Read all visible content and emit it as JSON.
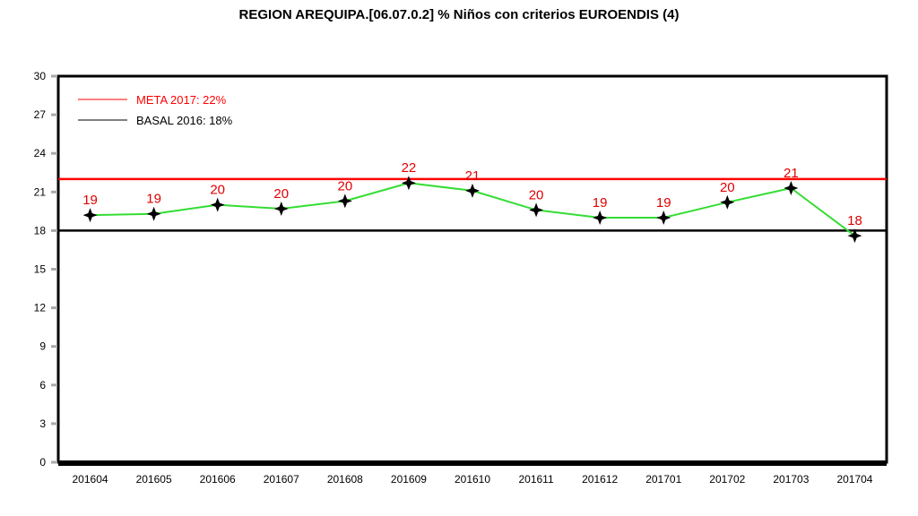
{
  "chart_data": {
    "type": "line",
    "title": "REGION AREQUIPA.[06.07.0.2] % Niños con criterios EUROENDIS (4)",
    "categories": [
      "201604",
      "201605",
      "201606",
      "201607",
      "201608",
      "201609",
      "201610",
      "201611",
      "201612",
      "201701",
      "201702",
      "201703",
      "201704"
    ],
    "series": [
      {
        "values": [
          19.2,
          19.3,
          20.0,
          19.7,
          20.3,
          21.7,
          21.1,
          19.6,
          19.0,
          19.0,
          20.2,
          21.3,
          17.6
        ],
        "labels": [
          "19",
          "19",
          "20",
          "20",
          "20",
          "22",
          "21",
          "20",
          "19",
          "19",
          "20",
          "21",
          "18"
        ],
        "color": "#33dd33",
        "label_color": "#e00000",
        "marker_color": "#000000"
      }
    ],
    "reference_lines": [
      {
        "name": "META 2017: 22%",
        "value": 22,
        "color": "#ff0000"
      },
      {
        "name": "BASAL 2016: 18%",
        "value": 18,
        "color": "#000000"
      }
    ],
    "ylim": [
      0,
      30
    ],
    "yticks": [
      "0",
      "3",
      "6",
      "9",
      "12",
      "15",
      "18",
      "21",
      "24",
      "27",
      "30"
    ],
    "xlabel": "",
    "ylabel": "",
    "grid": false,
    "legend": "top-left"
  }
}
